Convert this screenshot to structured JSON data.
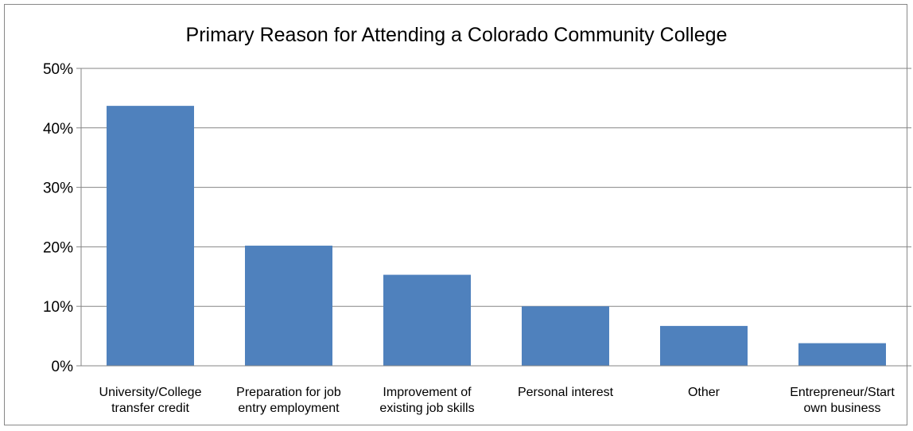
{
  "chart_data": {
    "type": "bar",
    "title": "Primary Reason for Attending a Colorado Community College",
    "xlabel": "",
    "ylabel": "",
    "categories": [
      [
        "University/College",
        "transfer credit"
      ],
      [
        "Preparation for job",
        "entry employment"
      ],
      [
        "Improvement of",
        "existing job skills"
      ],
      [
        "Personal interest"
      ],
      [
        "Other"
      ],
      [
        "Entrepreneur/Start",
        "own business"
      ]
    ],
    "values": [
      0.437,
      0.202,
      0.153,
      0.1,
      0.067,
      0.038
    ],
    "ylim": [
      0,
      0.5
    ],
    "yticks": [
      {
        "value": 0,
        "label": "0%"
      },
      {
        "value": 0.1,
        "label": "10%"
      },
      {
        "value": 0.2,
        "label": "20%"
      },
      {
        "value": 0.3,
        "label": "30%"
      },
      {
        "value": 0.4,
        "label": "40%"
      },
      {
        "value": 0.5,
        "label": "50%"
      }
    ],
    "grid": true,
    "legend": "none",
    "colors": {
      "bar": "#4f81bd",
      "grid": "#868686",
      "axis": "#868686"
    }
  }
}
